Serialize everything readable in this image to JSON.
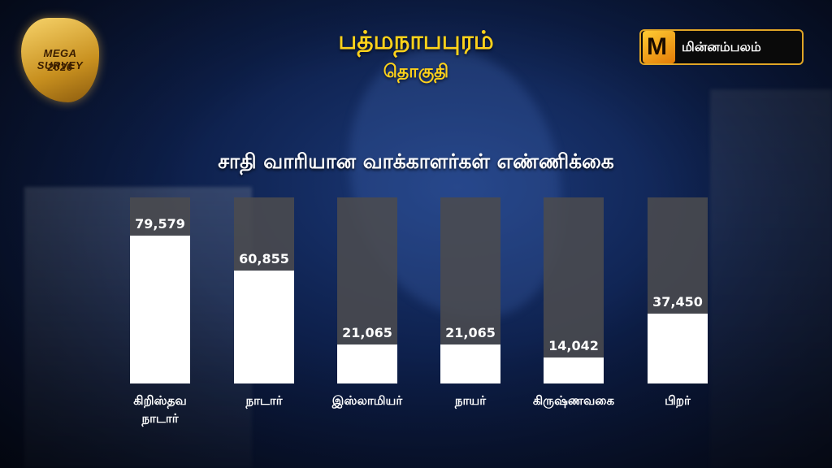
{
  "badge": {
    "line1": "MEGA SURVEY",
    "line2": "2026"
  },
  "header": {
    "title": "பத்மநாபபுரம்",
    "subtitle": "தொகுதி"
  },
  "logo": {
    "mark": "M",
    "text": "மின்னம்பலம்"
  },
  "chart_data": {
    "type": "bar",
    "title": "சாதி வாரியான வாக்காளர்கள்  எண்ணிக்கை",
    "categories": [
      "கிறிஸ்தவ நாடார்",
      "நாடார்",
      "இஸ்லாமியர்",
      "நாயர்",
      "கிருஷ்ணவகை",
      "பிறர்"
    ],
    "values": [
      79579,
      60855,
      21065,
      21065,
      14042,
      37450
    ],
    "value_labels": [
      "79,579",
      "60,855",
      "21,065",
      "21,065",
      "14,042",
      "37,450"
    ],
    "ylim": [
      0,
      100000
    ],
    "grid": false,
    "legend": "none",
    "colors": {
      "bar": "#ffffff",
      "track": "#4b4b4e",
      "title": "#ffd21a"
    }
  }
}
